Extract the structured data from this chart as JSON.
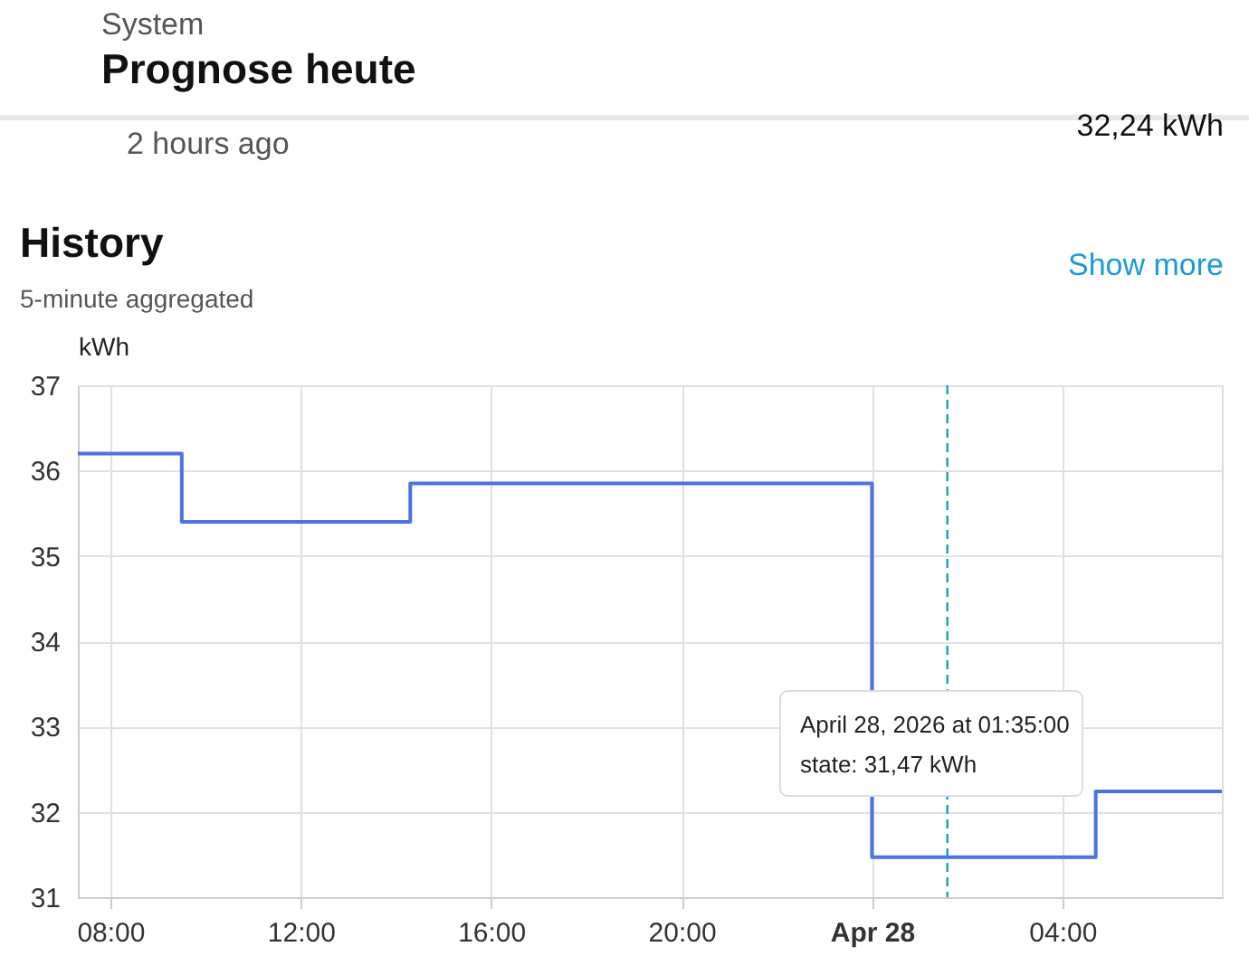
{
  "chart_data": {
    "type": "step",
    "title": "Prognose heute",
    "subtitle": "System",
    "ylabel": "kWh",
    "annotations": [
      "2 hours ago",
      "32,24 kWh",
      "History",
      "5-minute aggregated",
      "Show more",
      "April 28, 2026 at 01:35:00",
      "state: 31,47 kWh"
    ],
    "x": [
      "2026-04-27T07:19",
      "2026-04-27T09:30",
      "2026-04-27T14:18",
      "2026-04-28T00:00",
      "2026-04-28T04:42",
      "2026-04-28T07:21"
    ],
    "series": [
      {
        "color": "#4a74e0",
        "values": [
          36.2,
          35.4,
          35.85,
          31.47,
          32.24,
          32.24
        ]
      }
    ],
    "xlim": [
      "2026-04-27T07:19",
      "2026-04-28T07:21"
    ],
    "xticks": [
      {
        "value": "2026-04-27T08:00",
        "label": "08:00"
      },
      {
        "value": "2026-04-27T12:00",
        "label": "12:00"
      },
      {
        "value": "2026-04-27T16:00",
        "label": "16:00"
      },
      {
        "value": "2026-04-27T20:00",
        "label": "20:00"
      },
      {
        "value": "2026-04-28T00:00",
        "label": "Apr 28"
      },
      {
        "value": "2026-04-28T04:00",
        "label": "04:00"
      }
    ],
    "ylim": [
      31,
      37
    ],
    "yticks": [
      31,
      32,
      33,
      34,
      35,
      36,
      37
    ],
    "ref_lines": [
      {
        "axis": "x",
        "value": "2026-04-28T01:35",
        "color": "#1a9bd6",
        "line_style": "dashed"
      }
    ],
    "grid": true
  }
}
